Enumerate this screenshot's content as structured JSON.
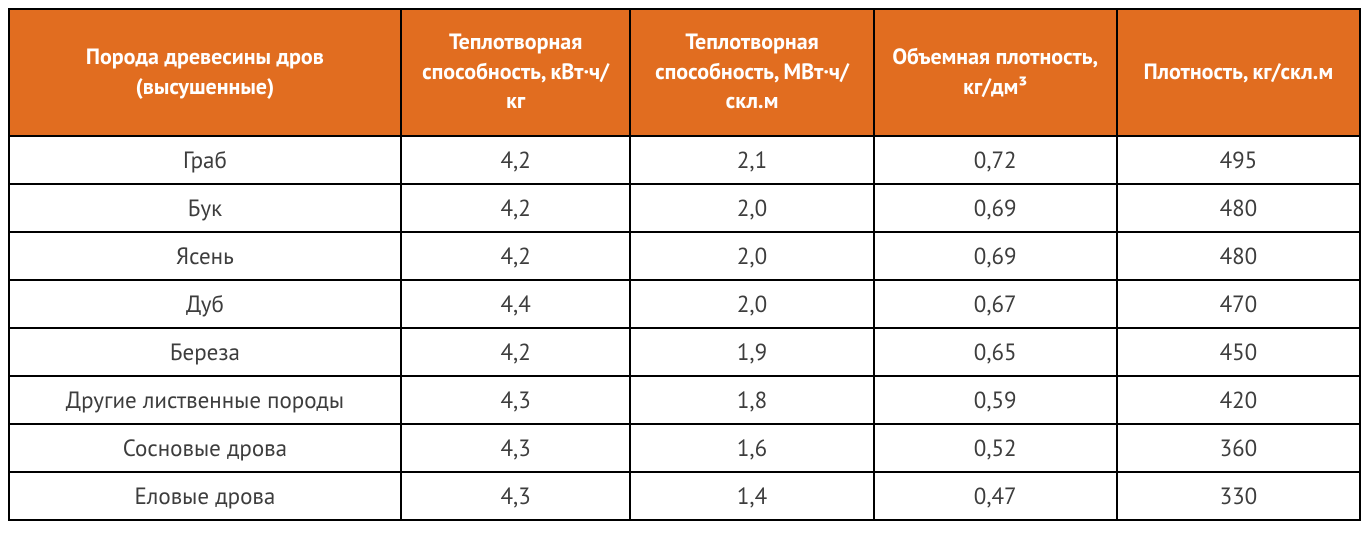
{
  "table": {
    "header_bg_color": "#e16d20",
    "header_text_color": "#ffffff",
    "border_color": "#000000",
    "cell_text_color": "#3d3d3d",
    "columns": [
      "Порода древесины дров (высушенные)",
      "Теплотворная способность, кВт·ч/кг",
      "Теплотворная способность, МВт·ч/скл.м",
      "Объемная плотность, кг/дм³",
      "Плотность, кг/скл.м"
    ],
    "rows": [
      [
        "Граб",
        "4,2",
        "2,1",
        "0,72",
        "495"
      ],
      [
        "Бук",
        "4,2",
        "2,0",
        "0,69",
        "480"
      ],
      [
        "Ясень",
        "4,2",
        "2,0",
        "0,69",
        "480"
      ],
      [
        "Дуб",
        "4,4",
        "2,0",
        "0,67",
        "470"
      ],
      [
        "Береза",
        "4,2",
        "1,9",
        "0,65",
        "450"
      ],
      [
        "Другие лиственные породы",
        "4,3",
        "1,8",
        "0,59",
        "420"
      ],
      [
        "Сосновые дрова",
        "4,3",
        "1,6",
        "0,52",
        "360"
      ],
      [
        "Еловые дрова",
        "4,3",
        "1,4",
        "0,47",
        "330"
      ]
    ]
  }
}
